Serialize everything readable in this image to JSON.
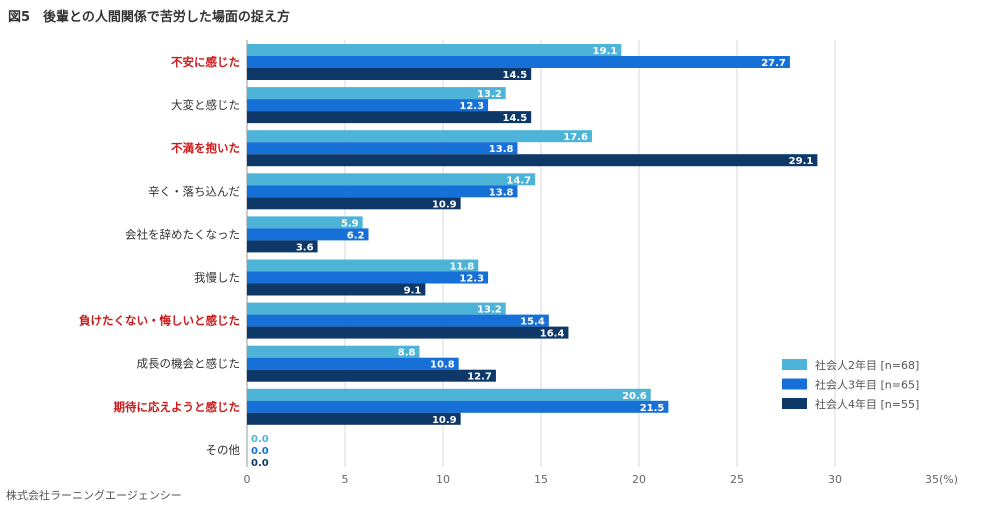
{
  "title": "図5　後輩との人間関係で苦労した場面の捉え方",
  "footer": "株式会社ラーニングエージェンシー",
  "colors": {
    "series1": "#4db4d8",
    "series2": "#1670d8",
    "series3": "#0d3868",
    "highlight_text": "#cc1a1a",
    "grid": "#d8d8d8",
    "zero_label_1": "#4db4d8",
    "zero_label_2": "#1670d8",
    "zero_label_3": "#0d3868"
  },
  "chart_data": {
    "type": "bar",
    "orientation": "horizontal",
    "title": "図5　後輩との人間関係で苦労した場面の捉え方",
    "categories": [
      "不安に感じた",
      "大変と感じた",
      "不満を抱いた",
      "辛く・落ち込んだ",
      "会社を辞めたくなった",
      "我慢した",
      "負けたくない・悔しいと感じた",
      "成長の機会と感じた",
      "期待に応えようと感じた",
      "その他"
    ],
    "highlighted_categories": [
      "不安に感じた",
      "不満を抱いた",
      "負けたくない・悔しいと感じた",
      "期待に応えようと感じた"
    ],
    "series": [
      {
        "name": "社会人2年目 [n=68]",
        "values": [
          19.1,
          13.2,
          17.6,
          14.7,
          5.9,
          11.8,
          13.2,
          8.8,
          20.6,
          0.0
        ]
      },
      {
        "name": "社会人3年目 [n=65]",
        "values": [
          27.7,
          12.3,
          13.8,
          13.8,
          6.2,
          12.3,
          15.4,
          10.8,
          21.5,
          0.0
        ]
      },
      {
        "name": "社会人4年目 [n=55]",
        "values": [
          14.5,
          14.5,
          29.1,
          10.9,
          3.6,
          9.1,
          16.4,
          12.7,
          10.9,
          0.0
        ]
      }
    ],
    "xlim": [
      0,
      35
    ],
    "x_ticks": [
      "0",
      "5",
      "10",
      "15",
      "20",
      "25",
      "30",
      "35(%)"
    ],
    "grid": true,
    "legend_position": "right"
  }
}
